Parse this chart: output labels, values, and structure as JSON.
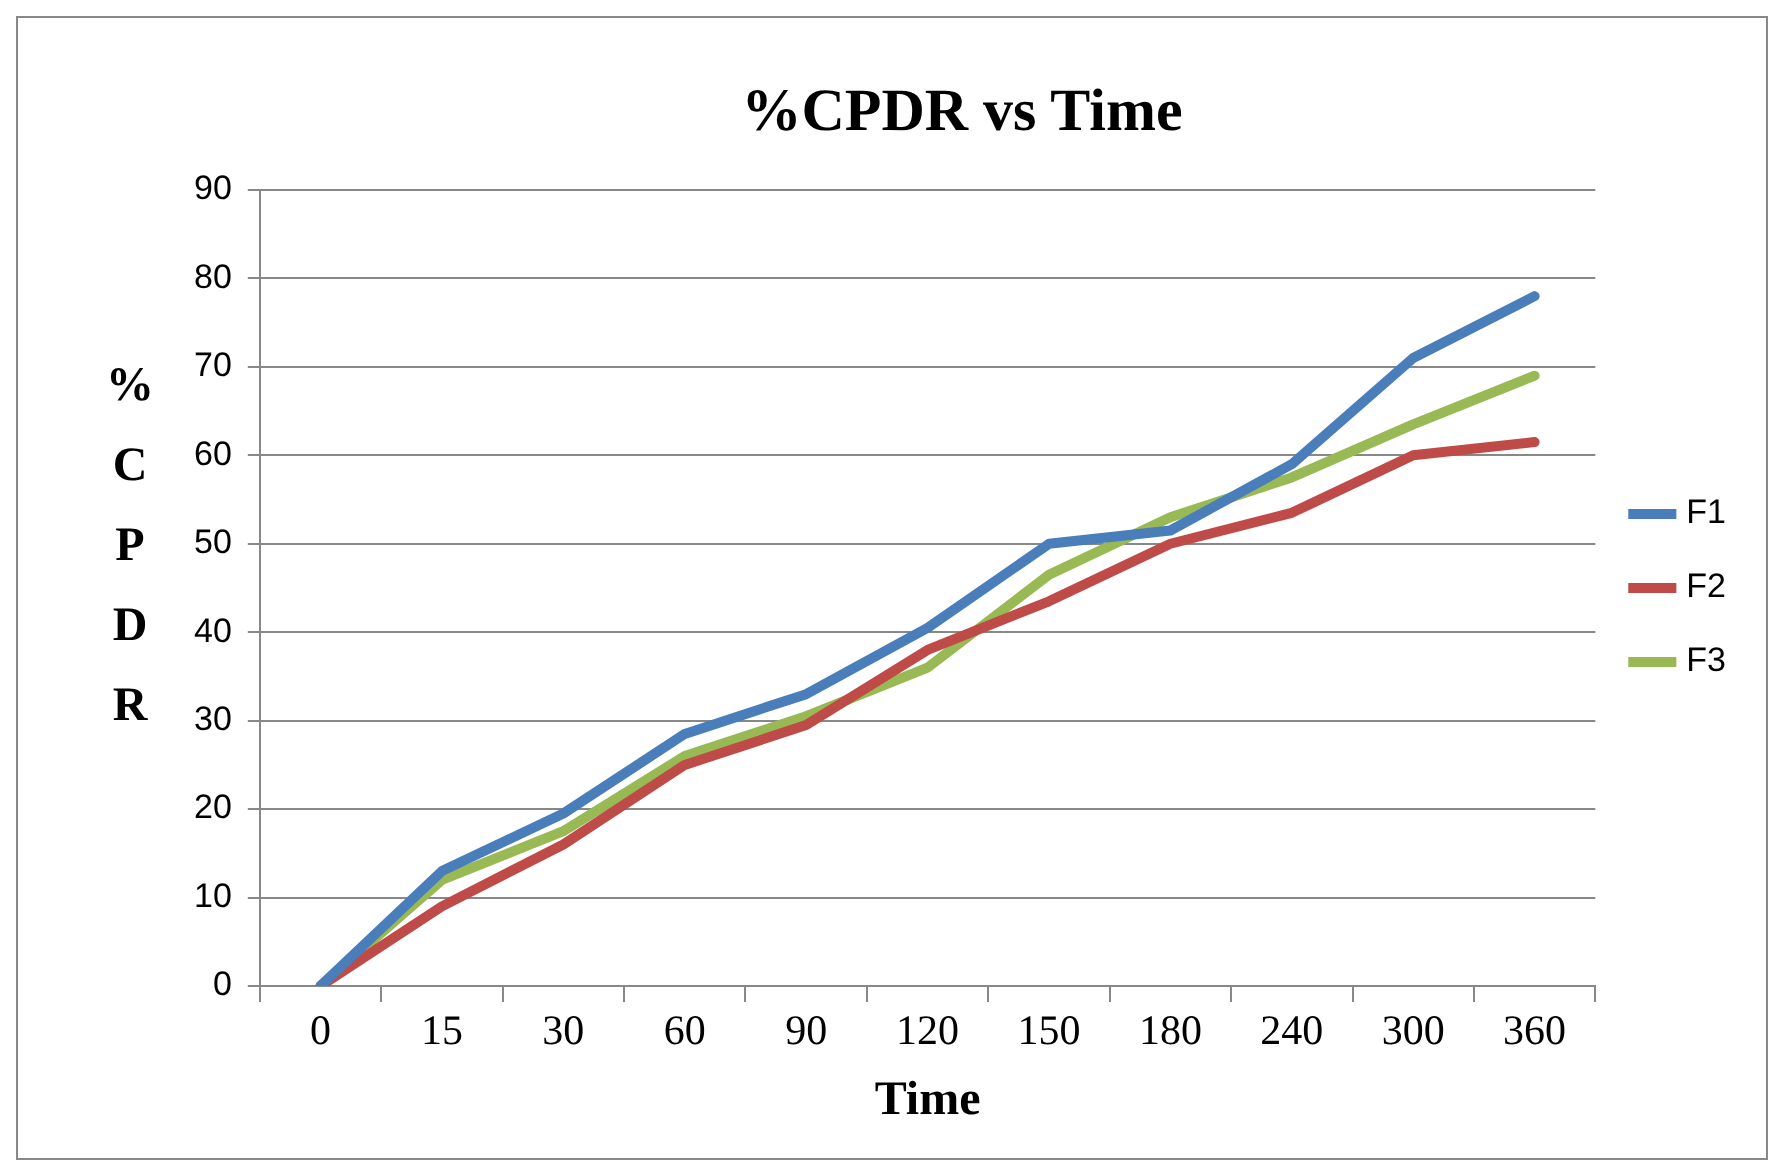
{
  "chart_data": {
    "type": "line",
    "title": "%CPDR vs Time",
    "xlabel": "Time",
    "ylabel": "%CPDR",
    "categories": [
      "0",
      "15",
      "30",
      "60",
      "90",
      "120",
      "150",
      "180",
      "240",
      "300",
      "360"
    ],
    "series": [
      {
        "name": "F1",
        "color": "#4a7ebb",
        "values": [
          0,
          13,
          19.5,
          28.5,
          33,
          40.5,
          50,
          51.5,
          59,
          71,
          78
        ]
      },
      {
        "name": "F2",
        "color": "#be4b48",
        "values": [
          0,
          9,
          16,
          25,
          29.5,
          38,
          43.5,
          50,
          53.5,
          60,
          61.5
        ]
      },
      {
        "name": "F3",
        "color": "#98b954",
        "values": [
          0,
          12,
          17.5,
          26,
          30.5,
          36,
          46.5,
          53,
          57.5,
          63.5,
          69
        ]
      }
    ],
    "ylim": [
      0,
      90
    ],
    "yticks": [
      0,
      10,
      20,
      30,
      40,
      50,
      60,
      70,
      80,
      90
    ],
    "grid": "y",
    "legend": "right",
    "marker": "none",
    "line_style": "solid"
  }
}
